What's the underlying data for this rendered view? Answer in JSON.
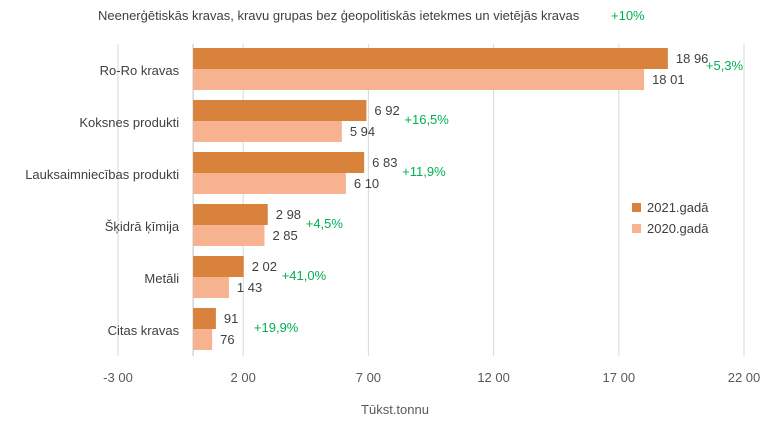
{
  "title": "Neenerģētiskās kravas, kravu grupas bez ģeopolitiskās ietekmes un vietējās kravas",
  "title_change": "+10%",
  "colors": {
    "series2021": "#d9823b",
    "series2020": "#f7b38f",
    "change": "#00b050",
    "grid": "#d9d9d9",
    "text": "#404040"
  },
  "chart_data": {
    "type": "bar",
    "orientation": "horizontal",
    "title": "Neenerģētiskās kravas, kravu grupas bez ģeopolitiskās ietekmes un vietējās kravas",
    "xlabel": "Tūkst.tonnu",
    "xlim": [
      -3000,
      22000
    ],
    "xticks": [
      -3000,
      2000,
      7000,
      12000,
      17000,
      22000
    ],
    "xtick_labels": [
      "-3 00",
      "2 00",
      "7 00",
      "12 00",
      "17 00",
      "22 00"
    ],
    "grid": true,
    "legend_position": "right",
    "categories": [
      "Ro-Ro kravas",
      "Koksnes produkti",
      "Lauksaimniecības produkti",
      "Šķidrā ķīmija",
      "Metāli",
      "Citas kravas"
    ],
    "series": [
      {
        "name": "2021.gadā",
        "values": [
          18960,
          6920,
          6830,
          2980,
          2020,
          910
        ],
        "labels": [
          "18 96",
          "6 92",
          "6 83",
          "2 98",
          "2 02",
          "91"
        ]
      },
      {
        "name": "2020.gadā",
        "values": [
          18010,
          5940,
          6100,
          2850,
          1430,
          760
        ],
        "labels": [
          "18 01",
          "5 94",
          "6 10",
          "2 85",
          "1 43",
          "76"
        ]
      }
    ],
    "changes": [
      "+5,3%",
      "+16,5%",
      "+11,9%",
      "+4,5%",
      "+41,0%",
      "+19,9%"
    ]
  }
}
